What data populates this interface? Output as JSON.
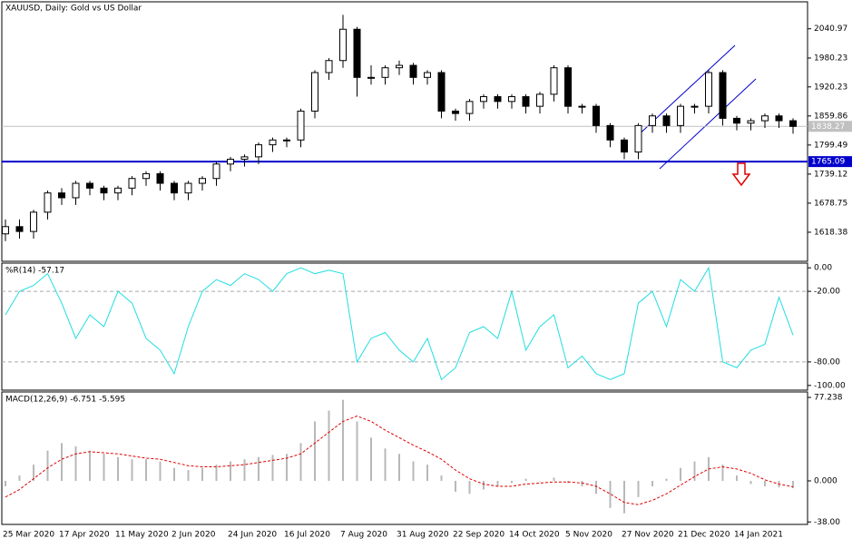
{
  "chart_data": [
    {
      "type": "candlestick",
      "title": "XAUUSD, Daily:  Gold vs US Dollar",
      "categories": [
        "25 Mar 2020",
        null,
        null,
        null,
        "17 Apr 2020",
        null,
        null,
        null,
        "11 May 2020",
        null,
        null,
        null,
        "2 Jun 2020",
        null,
        null,
        null,
        "24 Jun 2020",
        null,
        null,
        null,
        "16 Jul 2020",
        null,
        null,
        null,
        "7 Aug 2020",
        null,
        null,
        null,
        "31 Aug 2020",
        null,
        null,
        null,
        "22 Sep 2020",
        null,
        null,
        null,
        "14 Oct 2020",
        null,
        null,
        null,
        "5 Nov 2020",
        null,
        null,
        null,
        "27 Nov 2020",
        null,
        null,
        null,
        "21 Dec 2020",
        null,
        null,
        null,
        "14 Jan 2021",
        null,
        null,
        null,
        null
      ],
      "open": [
        1615,
        1630,
        1620,
        1660,
        1700,
        1690,
        1720,
        1710,
        1700,
        1710,
        1730,
        1740,
        1720,
        1700,
        1720,
        1730,
        1760,
        1770,
        1775,
        1800,
        1810,
        1810,
        1870,
        1950,
        1975,
        2040,
        1940,
        1940,
        1960,
        1965,
        1940,
        1950,
        1870,
        1865,
        1890,
        1900,
        1890,
        1900,
        1880,
        1905,
        1960,
        1880,
        1880,
        1840,
        1810,
        1785,
        1840,
        1860,
        1840,
        1880,
        1880,
        1950,
        1855,
        1845,
        1850,
        1860,
        1850
      ],
      "high": [
        1645,
        1645,
        1665,
        1705,
        1710,
        1725,
        1725,
        1715,
        1715,
        1735,
        1745,
        1745,
        1725,
        1725,
        1735,
        1765,
        1775,
        1780,
        1805,
        1815,
        1815,
        1875,
        1955,
        1980,
        2070,
        2045,
        1965,
        1965,
        1975,
        1970,
        1955,
        1955,
        1875,
        1895,
        1905,
        1905,
        1905,
        1905,
        1910,
        1965,
        1965,
        1885,
        1885,
        1845,
        1815,
        1845,
        1865,
        1865,
        1885,
        1885,
        1955,
        1955,
        1860,
        1855,
        1865,
        1865,
        1855
      ],
      "low": [
        1600,
        1605,
        1605,
        1645,
        1675,
        1675,
        1695,
        1685,
        1685,
        1695,
        1715,
        1705,
        1685,
        1685,
        1705,
        1715,
        1745,
        1755,
        1760,
        1785,
        1795,
        1795,
        1855,
        1935,
        1960,
        1900,
        1925,
        1925,
        1945,
        1925,
        1925,
        1855,
        1850,
        1850,
        1875,
        1875,
        1875,
        1865,
        1865,
        1890,
        1865,
        1865,
        1825,
        1795,
        1770,
        1770,
        1825,
        1825,
        1825,
        1865,
        1865,
        1840,
        1830,
        1830,
        1835,
        1835,
        1823
      ],
      "close": [
        1630,
        1620,
        1660,
        1700,
        1690,
        1720,
        1710,
        1700,
        1710,
        1730,
        1740,
        1720,
        1700,
        1720,
        1730,
        1760,
        1770,
        1775,
        1800,
        1810,
        1810,
        1870,
        1950,
        1975,
        2040,
        1940,
        1940,
        1960,
        1965,
        1940,
        1950,
        1870,
        1865,
        1890,
        1900,
        1890,
        1900,
        1880,
        1905,
        1960,
        1880,
        1880,
        1840,
        1810,
        1785,
        1840,
        1860,
        1840,
        1880,
        1880,
        1950,
        1855,
        1845,
        1850,
        1860,
        1850,
        1838.27
      ],
      "ylim": [
        1558,
        2097
      ],
      "yticks": [
        2040.97,
        1980.23,
        1920.23,
        1859.86,
        1799.49,
        1739.12,
        1678.75,
        1618.38
      ],
      "levels": [
        {
          "value": 1838.27,
          "color": "#c0c0c0"
        },
        {
          "value": 1765.09,
          "color": "#0000cc"
        }
      ]
    },
    {
      "type": "line",
      "title": "%R(14) -57.17",
      "color": "#22dde0",
      "values": [
        -40,
        -20,
        -15,
        -5,
        -30,
        -60,
        -40,
        -50,
        -20,
        -30,
        -60,
        -70,
        -90,
        -50,
        -20,
        -10,
        -15,
        -5,
        -10,
        -20,
        -5,
        0,
        -5,
        -2,
        -5,
        -80,
        -60,
        -55,
        -70,
        -80,
        -60,
        -95,
        -85,
        -55,
        -50,
        -60,
        -20,
        -70,
        -50,
        -40,
        -85,
        -75,
        -90,
        -95,
        -90,
        -30,
        -20,
        -50,
        -10,
        -20,
        0,
        -80,
        -85,
        -70,
        -65,
        -25,
        -57.17
      ],
      "ylim": [
        -104,
        4
      ],
      "yticks": [
        {
          "value": 0,
          "label": "0.00"
        },
        {
          "value": -20,
          "label": "-20.00"
        },
        {
          "value": -80,
          "label": "-80.00"
        },
        {
          "value": -100,
          "label": "-100.00"
        }
      ],
      "levels": [
        -20,
        -80
      ]
    },
    {
      "type": "macd",
      "title": "MACD(12,26,9) -6.751 -5.595",
      "series": [
        {
          "type": "bar",
          "color": "#b8b8b8",
          "values": [
            -5,
            5,
            15,
            28,
            35,
            32,
            28,
            25,
            22,
            20,
            20,
            18,
            12,
            10,
            12,
            15,
            18,
            20,
            22,
            24,
            25,
            35,
            55,
            65,
            75,
            55,
            40,
            30,
            25,
            18,
            15,
            5,
            -10,
            -12,
            -8,
            -5,
            -2,
            2,
            0,
            3,
            -2,
            -5,
            -12,
            -25,
            -30,
            -15,
            -5,
            2,
            12,
            18,
            22,
            15,
            5,
            -3,
            -5,
            -6,
            -6.751
          ]
        },
        {
          "type": "line",
          "color": "#e00000",
          "values": [
            -15,
            -8,
            2,
            12,
            20,
            25,
            27,
            26,
            25,
            23,
            21,
            20,
            17,
            14,
            13,
            13,
            14,
            15,
            17,
            19,
            21,
            25,
            35,
            45,
            55,
            60,
            55,
            47,
            40,
            33,
            27,
            20,
            10,
            2,
            -3,
            -5,
            -5,
            -3,
            -2,
            -1,
            -1,
            -2,
            -5,
            -12,
            -20,
            -22,
            -18,
            -12,
            -4,
            4,
            11,
            13,
            11,
            7,
            1,
            -3,
            -5.595
          ]
        }
      ],
      "ylim": [
        -40.3,
        82.3
      ],
      "yticks": [
        {
          "value": 77.238,
          "label": "77.238"
        },
        {
          "value": 0,
          "label": "0.000"
        },
        {
          "value": -38,
          "label": "-38.00"
        }
      ]
    }
  ]
}
